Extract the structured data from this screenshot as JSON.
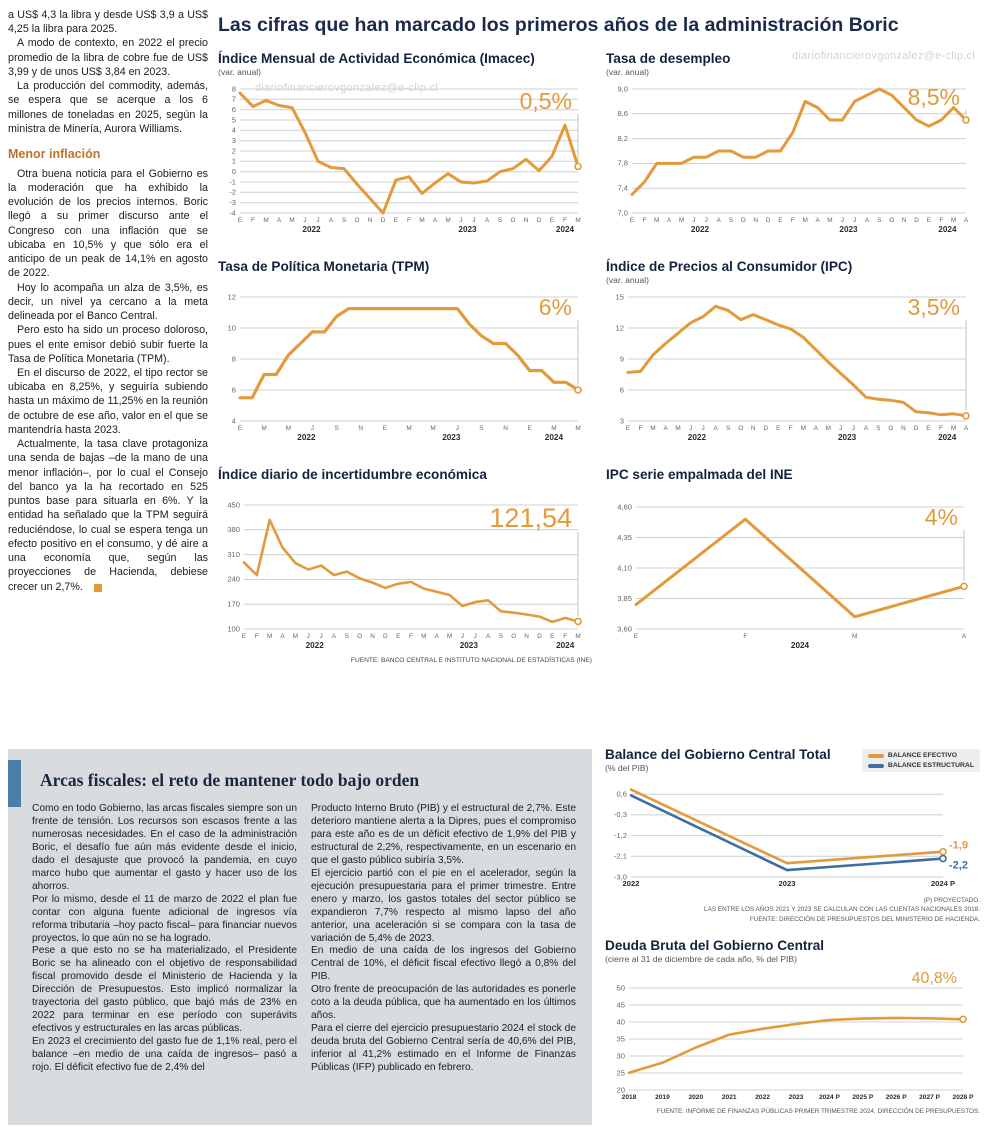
{
  "watermark": "diariofinancierovgonzalez@e-clip.cl",
  "colors": {
    "accent_orange": "#E39A3B",
    "accent_blue": "#3F6F9E",
    "title_navy": "#1B2A4A",
    "gray_bg": "#D9DCDE",
    "subhead_brown": "#BE7427"
  },
  "header": {
    "title": "Las cifras que han marcado los primeros años de la administración Boric"
  },
  "left_column": {
    "paragraphs_top": [
      "a US$ 4,3 la libra y desde US$ 3,9 a US$ 4,25 la libra para 2025.",
      "A modo de contexto, en 2022 el precio promedio de la libra de cobre fue de US$ 3,99 y de unos US$ 3,84 en 2023.",
      "La producción del commodity, además, se espera que se acerque a los 6 millones de toneladas en 2025, según la ministra de Minería, Aurora Williams."
    ],
    "subhead": "Menor inflación",
    "paragraphs_bottom": [
      "Otra buena noticia para el Gobierno es la moderación que ha exhibido la evolución de los precios internos. Boric llegó a su primer discurso ante el Congreso con una inflación que se ubicaba en 10,5% y que sólo era el anticipo de un peak de 14,1% en agosto de 2022.",
      "Hoy lo acompaña un alza de 3,5%, es decir, un nivel ya cercano a la meta delineada por el Banco Central.",
      "Pero esto ha sido un proceso doloroso, pues el ente emisor debió subir fuerte la Tasa de Política Monetaria (TPM).",
      "En el discurso de 2022, el tipo rector se ubicaba en 8,25%, y seguiría subiendo hasta un máximo de 11,25% en la reunión de octubre de ese año, valor en el que se mantendría hasta 2023.",
      "Actualmente, la tasa clave protagoniza una senda de bajas –de la mano de una menor inflación–, por lo cual el Consejo del banco ya la ha recortado en 525 puntos base para situarla en 6%. Y la entidad ha señalado que la TPM seguirá reduciéndose, lo cual se espera tenga un efecto positivo en el consumo, y dé aire a una economía que, según las proyecciones de Hacienda, debiese crecer un 2,7%."
    ]
  },
  "source_main": "FUENTE: BANCO CENTRAL E INSTITUTO NACIONAL DE ESTADÍSTICAS (INE)",
  "chart_data": [
    {
      "id": "imacec",
      "type": "line",
      "title": "Índice Mensual de Actividad Económica (Imacec)",
      "subtitle": "(var. anual)",
      "callout": "0,5%",
      "ymin": -4,
      "ymax": 8,
      "yticks": [
        [
          8,
          "8"
        ],
        [
          7,
          "7"
        ],
        [
          6,
          "6"
        ],
        [
          5,
          "5"
        ],
        [
          4,
          "4"
        ],
        [
          3,
          "3"
        ],
        [
          2,
          "2"
        ],
        [
          1,
          "1"
        ],
        [
          0,
          "0"
        ],
        [
          -1,
          "-1"
        ],
        [
          -2,
          "-2"
        ],
        [
          -3,
          "-3"
        ],
        [
          -4,
          "-4"
        ]
      ],
      "xlabels": [
        "E",
        "F",
        "M",
        "A",
        "M",
        "J",
        "J",
        "A",
        "S",
        "O",
        "N",
        "D",
        "E",
        "F",
        "M",
        "A",
        "M",
        "J",
        "J",
        "A",
        "S",
        "O",
        "N",
        "D",
        "E",
        "F",
        "M"
      ],
      "years": [
        {
          "label": "2022",
          "start": 0,
          "end": 11
        },
        {
          "label": "2023",
          "start": 12,
          "end": 23
        },
        {
          "label": "2024",
          "start": 24,
          "end": 26
        }
      ],
      "series": [
        {
          "name": "imacec",
          "color": "#E39A3B",
          "values": [
            7.6,
            6.3,
            6.9,
            6.4,
            6.2,
            3.8,
            1.0,
            0.4,
            0.3,
            -1.2,
            -2.6,
            -4.0,
            -0.8,
            -0.5,
            -2.1,
            -1.1,
            -0.2,
            -1.0,
            -1.1,
            -0.9,
            0.0,
            0.3,
            1.2,
            0.1,
            1.5,
            4.5,
            0.5
          ]
        }
      ]
    },
    {
      "id": "desempleo",
      "type": "line",
      "title": "Tasa de desempleo",
      "subtitle": "(var. anual)",
      "callout": "8,5%",
      "ymin": 7.0,
      "ymax": 9.0,
      "yticks": [
        [
          9.0,
          "9,0"
        ],
        [
          8.6,
          "8,6"
        ],
        [
          8.2,
          "8,2"
        ],
        [
          7.8,
          "7,8"
        ],
        [
          7.4,
          "7,4"
        ],
        [
          7.0,
          "7,0"
        ]
      ],
      "xlabels": [
        "E",
        "F",
        "M",
        "A",
        "M",
        "J",
        "J",
        "A",
        "S",
        "O",
        "N",
        "D",
        "E",
        "F",
        "M",
        "A",
        "M",
        "J",
        "J",
        "A",
        "S",
        "O",
        "N",
        "D",
        "E",
        "F",
        "M",
        "A"
      ],
      "years": [
        {
          "label": "2022",
          "start": 0,
          "end": 11
        },
        {
          "label": "2023",
          "start": 12,
          "end": 23
        },
        {
          "label": "2024",
          "start": 24,
          "end": 27
        }
      ],
      "series": [
        {
          "name": "desempleo",
          "color": "#E39A3B",
          "values": [
            7.3,
            7.5,
            7.8,
            7.8,
            7.8,
            7.9,
            7.9,
            8.0,
            8.0,
            7.9,
            7.9,
            8.0,
            8.0,
            8.3,
            8.8,
            8.7,
            8.5,
            8.5,
            8.8,
            8.9,
            9.0,
            8.9,
            8.7,
            8.5,
            8.4,
            8.5,
            8.7,
            8.5
          ]
        }
      ]
    },
    {
      "id": "tpm",
      "type": "line",
      "title": "Tasa de Política Monetaria (TPM)",
      "subtitle": "",
      "callout": "6%",
      "ymin": 4,
      "ymax": 12,
      "yticks": [
        [
          12,
          "12"
        ],
        [
          10,
          "10"
        ],
        [
          8,
          "8"
        ],
        [
          6,
          "6"
        ],
        [
          4,
          "4"
        ]
      ],
      "xlabels": [
        "E",
        "",
        "M",
        "",
        "M",
        "",
        "J",
        "",
        "S",
        "",
        "N",
        "",
        "E",
        "",
        "M",
        "",
        "M",
        "",
        "J",
        "",
        "S",
        "",
        "N",
        "",
        "E",
        "",
        "M",
        "",
        "M"
      ],
      "years": [
        {
          "label": "2022",
          "start": 0,
          "end": 11
        },
        {
          "label": "2023",
          "start": 12,
          "end": 23
        },
        {
          "label": "2024",
          "start": 24,
          "end": 28
        }
      ],
      "series": [
        {
          "name": "tpm",
          "color": "#E39A3B",
          "values": [
            5.5,
            5.5,
            7.0,
            7.0,
            8.25,
            9.0,
            9.75,
            9.75,
            10.75,
            11.25,
            11.25,
            11.25,
            11.25,
            11.25,
            11.25,
            11.25,
            11.25,
            11.25,
            11.25,
            10.25,
            9.5,
            9.0,
            9.0,
            8.25,
            7.25,
            7.25,
            6.5,
            6.5,
            6.0
          ]
        }
      ]
    },
    {
      "id": "ipc",
      "type": "line",
      "title": "Índice de Precios al Consumidor (IPC)",
      "subtitle": "(var. anual)",
      "callout": "3,5%",
      "ymin": 3,
      "ymax": 15,
      "yticks": [
        [
          15,
          "15"
        ],
        [
          12,
          "12"
        ],
        [
          9,
          "9"
        ],
        [
          6,
          "6"
        ],
        [
          3,
          "3"
        ]
      ],
      "xlabels": [
        "E",
        "F",
        "M",
        "A",
        "M",
        "J",
        "J",
        "A",
        "S",
        "O",
        "N",
        "D",
        "E",
        "F",
        "M",
        "A",
        "M",
        "J",
        "J",
        "A",
        "S",
        "O",
        "N",
        "D",
        "E",
        "F",
        "M",
        "A"
      ],
      "years": [
        {
          "label": "2022",
          "start": 0,
          "end": 11
        },
        {
          "label": "2023",
          "start": 12,
          "end": 23
        },
        {
          "label": "2024",
          "start": 24,
          "end": 27
        }
      ],
      "series": [
        {
          "name": "ipc",
          "color": "#E39A3B",
          "values": [
            7.7,
            7.8,
            9.4,
            10.5,
            11.5,
            12.5,
            13.1,
            14.1,
            13.7,
            12.8,
            13.3,
            12.8,
            12.3,
            11.9,
            11.1,
            9.9,
            8.7,
            7.6,
            6.5,
            5.3,
            5.1,
            5.0,
            4.8,
            3.9,
            3.8,
            3.6,
            3.7,
            3.5
          ]
        }
      ]
    },
    {
      "id": "incert",
      "type": "line",
      "title": "Índice diario de incertidumbre económica",
      "subtitle": "",
      "callout": "121,54",
      "ymin": 100,
      "ymax": 450,
      "yticks": [
        [
          450,
          "450"
        ],
        [
          380,
          "380"
        ],
        [
          310,
          "310"
        ],
        [
          240,
          "240"
        ],
        [
          170,
          "170"
        ],
        [
          100,
          "100"
        ]
      ],
      "xlabels": [
        "E",
        "F",
        "M",
        "A",
        "M",
        "J",
        "J",
        "A",
        "S",
        "O",
        "N",
        "D",
        "E",
        "F",
        "M",
        "A",
        "M",
        "J",
        "J",
        "A",
        "S",
        "O",
        "N",
        "D",
        "E",
        "F",
        "M"
      ],
      "years": [
        {
          "label": "2022",
          "start": 0,
          "end": 11
        },
        {
          "label": "2023",
          "start": 12,
          "end": 23
        },
        {
          "label": "2024",
          "start": 24,
          "end": 26
        }
      ],
      "series": [
        {
          "name": "incertidumbre",
          "color": "#E39A3B",
          "values": [
            288,
            252,
            408,
            330,
            286,
            268,
            279,
            252,
            262,
            243,
            231,
            216,
            228,
            233,
            214,
            205,
            196,
            165,
            176,
            181,
            150,
            146,
            141,
            135,
            120,
            131,
            121.54
          ]
        }
      ]
    },
    {
      "id": "empalmada",
      "type": "line",
      "title": "IPC serie empalmada del INE",
      "subtitle": "",
      "callout": "4%",
      "ymin": 3.6,
      "ymax": 4.6,
      "yticks": [
        [
          4.6,
          "4,60"
        ],
        [
          4.35,
          "4,35"
        ],
        [
          4.1,
          "4,10"
        ],
        [
          3.85,
          "3,85"
        ],
        [
          3.6,
          "3,60"
        ]
      ],
      "xlabels": [
        "E",
        "F",
        "M",
        "A"
      ],
      "years": [
        {
          "label": "2024",
          "start": 0,
          "end": 3
        }
      ],
      "series": [
        {
          "name": "ipc-empalmado",
          "color": "#E39A3B",
          "values": [
            3.8,
            4.5,
            3.7,
            3.95
          ]
        }
      ]
    },
    {
      "id": "balance",
      "type": "line",
      "title": "Balance del Gobierno Central Total",
      "subtitle": "(% del PIB)",
      "ymin": -3.0,
      "ymax": 1.0,
      "yticks": [
        [
          0.6,
          "0,6"
        ],
        [
          -0.3,
          "-0,3"
        ],
        [
          -1.2,
          "-1,2"
        ],
        [
          -2.1,
          "-2,1"
        ],
        [
          -3.0,
          "-3,0"
        ]
      ],
      "xlabels": [
        "2022",
        "2023",
        "2024 P"
      ],
      "xclass": "xlab-year",
      "series": [
        {
          "name": "BALANCE EFECTIVO",
          "color": "#E39A3B",
          "values": [
            0.8,
            -2.4,
            -1.9
          ],
          "callout": "-1,9",
          "callout_dy": -3
        },
        {
          "name": "BALANCE ESTRUCTURAL",
          "color": "#3F6F9E",
          "values": [
            0.55,
            -2.7,
            -2.2
          ],
          "callout": "-2,2",
          "callout_dy": 10
        }
      ],
      "footnotes": [
        "(P) PROYECTADO.",
        "LAS ENTRE LOS AÑOS 2021 Y 2023 SE CALCULAN CON LAS CUENTAS NACIONALES 2018.",
        "FUENTE: DIRECCIÓN DE PRESUPUESTOS DEL MINISTERIO DE HACIENDA."
      ]
    },
    {
      "id": "deuda",
      "type": "line",
      "title": "Deuda Bruta del Gobierno Central",
      "subtitle": "(cierre al 31 de diciembre de cada año, % del PIB)",
      "callout": "40,8%",
      "ymin": 20,
      "ymax": 50,
      "yticks": [
        [
          50,
          "50"
        ],
        [
          45,
          "45"
        ],
        [
          40,
          "40"
        ],
        [
          35,
          "35"
        ],
        [
          30,
          "30"
        ],
        [
          25,
          "25"
        ],
        [
          20,
          "20"
        ]
      ],
      "xlabels": [
        "2018",
        "2019",
        "2020",
        "2021",
        "2022",
        "2023",
        "2024 P",
        "2025 P",
        "2026 P",
        "2027 P",
        "2028 P"
      ],
      "xclass": "xlab-year-sm",
      "series": [
        {
          "name": "deuda-bruta",
          "color": "#E39A3B",
          "values": [
            25.1,
            28.0,
            32.5,
            36.3,
            38.0,
            39.4,
            40.6,
            41.0,
            41.2,
            41.1,
            40.8
          ]
        }
      ],
      "footnote": "FUENTE: INFORME DE FINANZAS PÚBLICAS PRIMER TRIMESTRE 2024, DIRECCIÓN DE PRESUPUESTOS."
    }
  ],
  "bottom": {
    "title": "Arcas fiscales: el reto de mantener todo bajo orden",
    "col1": [
      "Como en todo Gobierno, las arcas fiscales siempre son un frente de tensión. Los recursos son escasos frente a las numerosas necesidades. En el caso de la administración Boric, el desafío fue aún más evidente desde el inicio, dado el desajuste que provocó la pandemia, en cuyo marco hubo que aumentar el gasto y hacer uso de los ahorros.",
      "Por lo mismo, desde el 11 de marzo de 2022 el plan fue contar con alguna fuente adicional de ingresos vía reforma tributaria –hoy pacto fiscal– para financiar nuevos proyectos, lo que aún no se ha logrado.",
      "Pese a que esto no se ha materializado, el Presidente Boric se ha alineado con el objetivo de responsabilidad fiscal promovido desde el Ministerio de Hacienda y la Dirección de Presupuestos. Esto implicó normalizar la trayectoria del gasto público, que bajó más de 23% en 2022 para terminar en ese período con superávits efectivos y estructurales en las arcas públicas.",
      "En 2023 el crecimiento del gasto fue de 1,1% real, pero el balance –en medio de una caída de ingresos– pasó a rojo. El déficit efectivo fue de 2,4% del"
    ],
    "col2": [
      "Producto Interno Bruto (PIB) y el estructural de 2,7%. Este deterioro mantiene alerta a la Dipres, pues el compromiso para este año es de un déficit efectivo de 1,9% del PIB y estructural de 2,2%, respectivamente, en un escenario en que el gasto público subiría 3,5%.",
      "El ejercicio partió con el pie en el acelerador, según la ejecución presupuestaria para el primer trimestre. Entre enero y marzo, los gastos totales del sector público se expandieron 7,7% respecto al mismo lapso del año anterior, una aceleración si se compara con la tasa de variación de 5,4% de 2023.",
      "En medio de una caída de los ingresos del Gobierno Central de 10%, el déficit fiscal efectivo llegó a 0,8% del PIB.",
      "Otro frente de preocupación de las autoridades es ponerle coto a la deuda pública, que ha aumentado en los últimos años.",
      "Para el cierre del ejercicio presupuestario 2024 el stock de deuda bruta del Gobierno Central sería de 40,6% del PIB, inferior al 41,2% estimado en el Informe de Finanzas Públicas (IFP) publicado en febrero."
    ]
  }
}
